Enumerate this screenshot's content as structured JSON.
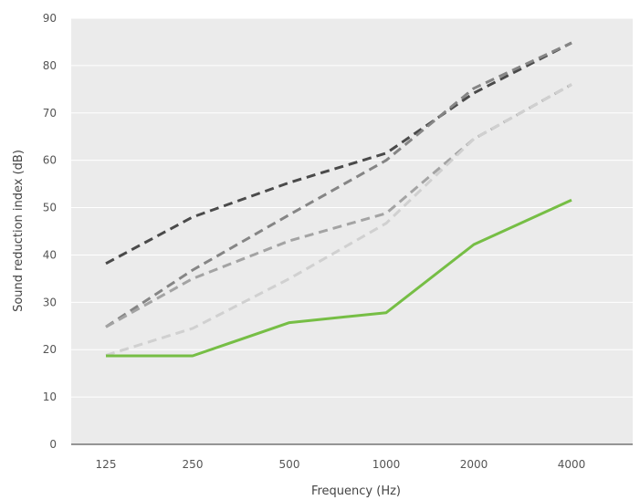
{
  "chart_data": {
    "type": "line",
    "title": "",
    "xlabel": "Frequency (Hz)",
    "ylabel": "Sound reduction index (dB)",
    "x_categories": [
      "125",
      "250",
      "500",
      "1000",
      "2000",
      "4000"
    ],
    "y_ticks": [
      "0",
      "10",
      "20",
      "30",
      "40",
      "50",
      "60",
      "70",
      "80",
      "90"
    ],
    "ylim": [
      0,
      90
    ],
    "grid": true,
    "legend": "none",
    "plot_background": "#ebebeb",
    "series": [
      {
        "color": "#4a4a4a",
        "style": "dashed",
        "values": [
          38.2,
          48,
          55.3,
          61.5,
          74.2,
          84.8
        ]
      },
      {
        "color": "#858585",
        "style": "dashed",
        "values": [
          24.8,
          36.8,
          48.5,
          60,
          75.2,
          84.8
        ]
      },
      {
        "color": "#a3a3a3",
        "style": "dashed",
        "values": [
          24.8,
          35,
          43,
          48.8,
          64.5,
          76
        ]
      },
      {
        "color": "#d0d0d0",
        "style": "dashed",
        "values": [
          18.8,
          24.5,
          35,
          46.7,
          64.5,
          76
        ]
      },
      {
        "color": "#76be45",
        "style": "solid",
        "values": [
          18.7,
          18.7,
          25.7,
          27.8,
          42.2,
          51.6
        ]
      }
    ]
  }
}
